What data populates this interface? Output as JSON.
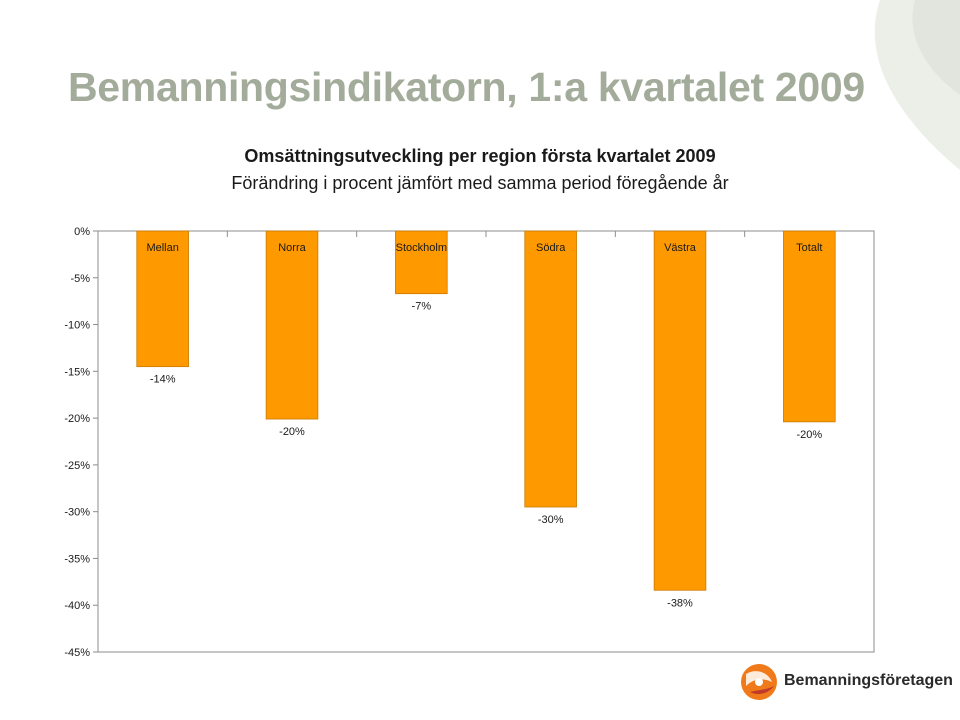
{
  "slide": {
    "title": "Bemanningsindikatorn, 1:a kvartalet 2009"
  },
  "chart_data": {
    "type": "bar",
    "title": "Omsättningsutveckling per region första kvartalet 2009",
    "subtitle": "Förändring i procent jämfört med samma period föregående år",
    "categories": [
      "Mellan",
      "Norra",
      "Stockholm",
      "Södra",
      "Västra",
      "Totalt"
    ],
    "values": [
      -14.5,
      -20.1,
      -6.7,
      -29.5,
      -38.4,
      -20.4
    ],
    "data_labels": [
      "-14%",
      "-20%",
      "-7%",
      "-30%",
      "-38%",
      "-20%"
    ],
    "ylim": [
      -45,
      0
    ],
    "y_ticks": [
      0,
      -5,
      -10,
      -15,
      -20,
      -25,
      -30,
      -35,
      -40,
      -45
    ],
    "y_tick_labels": [
      "0%",
      "-5%",
      "-10%",
      "-15%",
      "-20%",
      "-25%",
      "-30%",
      "-35%",
      "-40%",
      "-45%"
    ],
    "grid": false,
    "legend": "none",
    "bar_color": "#ff9900",
    "bar_edge_color": "#cc7a00"
  },
  "logo": {
    "text": "Bemanningsföretagen",
    "colors": [
      "#f07a1a",
      "#c0392b"
    ]
  },
  "colors": {
    "title": "#a3ab9a",
    "decor": "#d9dcd4"
  }
}
